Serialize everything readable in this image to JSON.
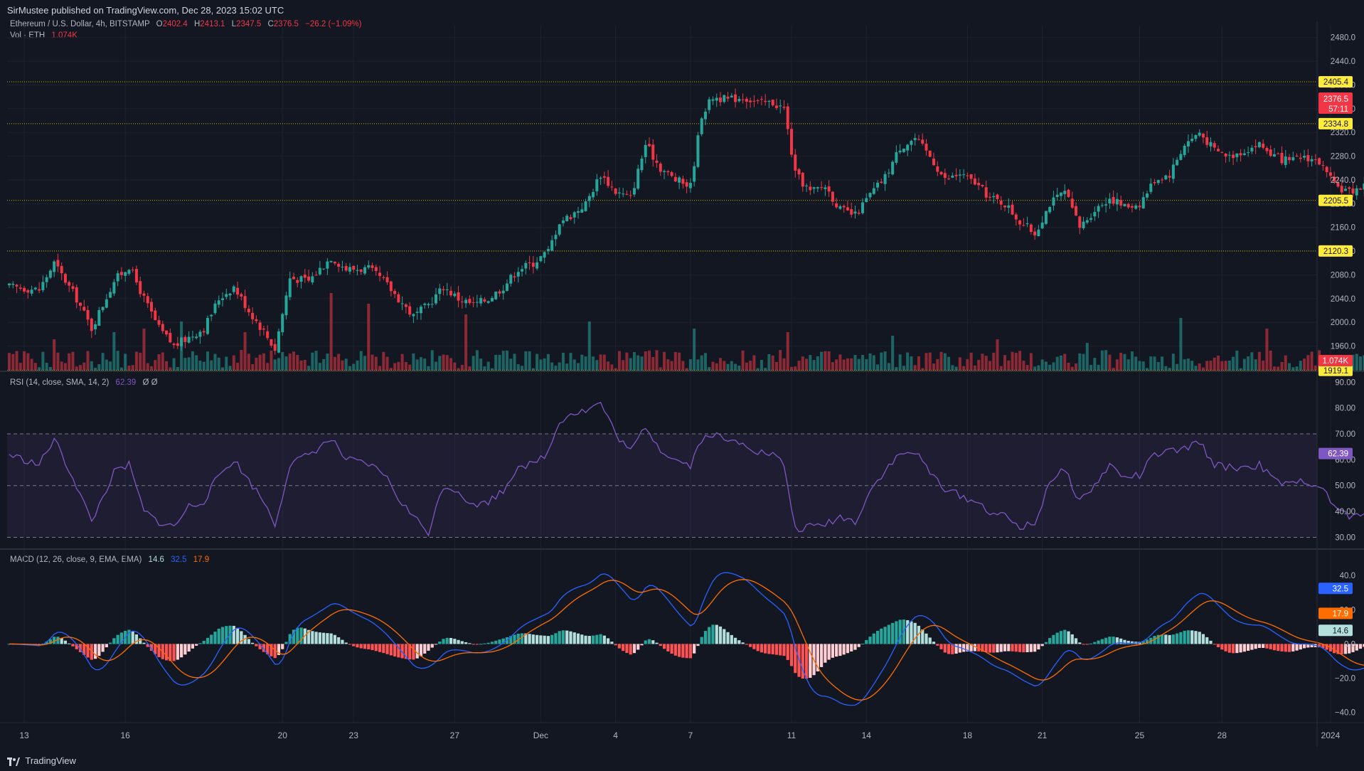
{
  "header": {
    "publish_line": "SirMustee published on TradingView.com, Dec 28, 2023 15:02 UTC"
  },
  "footer": {
    "brand": "TradingView"
  },
  "legend": {
    "symbol": "Ethereum / U.S. Dollar, 4h, BITSTAMP",
    "o_label": "O",
    "o_value": "2402.4",
    "h_label": "H",
    "h_value": "2413.1",
    "l_label": "L",
    "l_value": "2347.5",
    "c_label": "C",
    "c_value": "2376.5",
    "change": "−26.2 (−1.09%)",
    "vol_label": "Vol · ETH",
    "vol_value": "1.074K",
    "rsi_label": "RSI (14, close, SMA, 14, 2)",
    "rsi_value": "62.39",
    "rsi_extra": "Ø  Ø",
    "macd_label": "MACD (12, 26, close, 9, EMA, EMA)",
    "macd_hist": "14.6",
    "macd_line": "32.5",
    "macd_signal": "17.9"
  },
  "colors": {
    "background": "#131722",
    "up": "#26a69a",
    "down": "#f23645",
    "level_line": "#c9b300",
    "level_label_bg": "#ffeb3b",
    "rsi_line": "#7e57c2",
    "macd_line": "#2962ff",
    "signal_line": "#ff6d00",
    "axis_text": "#b2b5be"
  },
  "chart_data": [
    {
      "type": "candlestick",
      "title": "Ethereum / U.S. Dollar, 4h, BITSTAMP",
      "ylim": [
        1920,
        2500
      ],
      "y_ticks": [
        "2480.0",
        "2440.0",
        "2400.0",
        "2360.0",
        "2320.0",
        "2280.0",
        "2240.0",
        "2200.0",
        "2160.0",
        "2120.0",
        "2080.0",
        "2040.0",
        "2000.0",
        "1960.0"
      ],
      "x_ticks": [
        "13",
        "16",
        "20",
        "23",
        "27",
        "Dec",
        "4",
        "7",
        "11",
        "14",
        "18",
        "21",
        "25",
        "28",
        "2024"
      ],
      "close_anchors": [
        [
          0,
          2060
        ],
        [
          8,
          2055
        ],
        [
          12,
          2100
        ],
        [
          18,
          2040
        ],
        [
          22,
          1990
        ],
        [
          28,
          2070
        ],
        [
          32,
          2095
        ],
        [
          36,
          2040
        ],
        [
          40,
          1990
        ],
        [
          44,
          1960
        ],
        [
          48,
          1975
        ],
        [
          52,
          1990
        ],
        [
          56,
          2040
        ],
        [
          60,
          2060
        ],
        [
          64,
          2020
        ],
        [
          68,
          1985
        ],
        [
          71,
          1955
        ],
        [
          75,
          2075
        ],
        [
          80,
          2070
        ],
        [
          86,
          2110
        ],
        [
          90,
          2090
        ],
        [
          96,
          2090
        ],
        [
          100,
          2070
        ],
        [
          104,
          2040
        ],
        [
          108,
          2010
        ],
        [
          112,
          2030
        ],
        [
          116,
          2060
        ],
        [
          120,
          2040
        ],
        [
          124,
          2030
        ],
        [
          128,
          2040
        ],
        [
          132,
          2060
        ],
        [
          136,
          2090
        ],
        [
          140,
          2100
        ],
        [
          144,
          2120
        ],
        [
          147,
          2170
        ],
        [
          150,
          2180
        ],
        [
          154,
          2200
        ],
        [
          158,
          2250
        ],
        [
          162,
          2220
        ],
        [
          166,
          2210
        ],
        [
          170,
          2300
        ],
        [
          174,
          2260
        ],
        [
          178,
          2240
        ],
        [
          182,
          2230
        ],
        [
          185,
          2350
        ],
        [
          188,
          2380
        ],
        [
          192,
          2375
        ],
        [
          196,
          2380
        ],
        [
          200,
          2370
        ],
        [
          204,
          2370
        ],
        [
          207,
          2360
        ],
        [
          210,
          2250
        ],
        [
          214,
          2220
        ],
        [
          218,
          2230
        ],
        [
          222,
          2190
        ],
        [
          226,
          2180
        ],
        [
          230,
          2215
        ],
        [
          234,
          2245
        ],
        [
          238,
          2295
        ],
        [
          242,
          2310
        ],
        [
          246,
          2280
        ],
        [
          250,
          2240
        ],
        [
          254,
          2250
        ],
        [
          258,
          2235
        ],
        [
          262,
          2210
        ],
        [
          266,
          2200
        ],
        [
          270,
          2170
        ],
        [
          274,
          2150
        ],
        [
          278,
          2200
        ],
        [
          282,
          2220
        ],
        [
          286,
          2160
        ],
        [
          290,
          2190
        ],
        [
          294,
          2210
        ],
        [
          298,
          2195
        ],
        [
          302,
          2200
        ],
        [
          306,
          2240
        ],
        [
          310,
          2250
        ],
        [
          314,
          2300
        ],
        [
          318,
          2320
        ],
        [
          322,
          2290
        ],
        [
          326,
          2280
        ],
        [
          330,
          2290
        ],
        [
          334,
          2300
        ],
        [
          338,
          2280
        ],
        [
          342,
          2270
        ],
        [
          346,
          2280
        ],
        [
          350,
          2270
        ],
        [
          354,
          2230
        ],
        [
          358,
          2220
        ],
        [
          362,
          2230
        ],
        [
          366,
          2300
        ],
        [
          370,
          2345
        ],
        [
          374,
          2410
        ],
        [
          377,
          2390
        ],
        [
          378,
          2376.5
        ]
      ],
      "last_close": 2376.5,
      "levels": [
        2405.4,
        2334.8,
        2205.5,
        2120.3,
        1919.1
      ],
      "level_labels": [
        "2405.4",
        "2334.8",
        "2205.5",
        "2120.3",
        "1919.1"
      ],
      "last_price_label": "2376.5",
      "countdown_label": "57:11"
    },
    {
      "type": "bar",
      "title": "Vol · ETH",
      "last_value_label": "1.074K",
      "spike_bars": [
        [
          12,
          45
        ],
        [
          28,
          55
        ],
        [
          36,
          60
        ],
        [
          46,
          70
        ],
        [
          63,
          55
        ],
        [
          86,
          110
        ],
        [
          96,
          95
        ],
        [
          122,
          80
        ],
        [
          155,
          70
        ],
        [
          183,
          60
        ],
        [
          208,
          55
        ],
        [
          236,
          50
        ],
        [
          264,
          45
        ],
        [
          288,
          40
        ],
        [
          313,
          75
        ],
        [
          336,
          60
        ],
        [
          368,
          160
        ],
        [
          372,
          95
        ]
      ]
    },
    {
      "type": "line",
      "title": "RSI (14, close, SMA, 14, 2)",
      "ylim": [
        26,
        92
      ],
      "y_ticks": [
        "90.00",
        "80.00",
        "70.00",
        "60.00",
        "50.00",
        "40.00",
        "30.00"
      ],
      "band": [
        30,
        70
      ],
      "midline": 50,
      "value_label": "62.39",
      "anchors": [
        [
          0,
          62
        ],
        [
          8,
          58
        ],
        [
          12,
          68
        ],
        [
          18,
          50
        ],
        [
          22,
          36
        ],
        [
          28,
          55
        ],
        [
          32,
          58
        ],
        [
          36,
          40
        ],
        [
          40,
          36
        ],
        [
          44,
          34
        ],
        [
          48,
          42
        ],
        [
          52,
          44
        ],
        [
          56,
          54
        ],
        [
          60,
          60
        ],
        [
          64,
          52
        ],
        [
          68,
          44
        ],
        [
          71,
          35
        ],
        [
          75,
          58
        ],
        [
          80,
          62
        ],
        [
          86,
          68
        ],
        [
          90,
          60
        ],
        [
          96,
          58
        ],
        [
          100,
          55
        ],
        [
          104,
          45
        ],
        [
          108,
          38
        ],
        [
          112,
          32
        ],
        [
          116,
          50
        ],
        [
          120,
          48
        ],
        [
          124,
          42
        ],
        [
          128,
          44
        ],
        [
          132,
          48
        ],
        [
          136,
          58
        ],
        [
          140,
          58
        ],
        [
          144,
          63
        ],
        [
          147,
          75
        ],
        [
          150,
          78
        ],
        [
          154,
          79
        ],
        [
          158,
          82
        ],
        [
          162,
          70
        ],
        [
          166,
          63
        ],
        [
          170,
          73
        ],
        [
          174,
          64
        ],
        [
          178,
          60
        ],
        [
          182,
          58
        ],
        [
          185,
          68
        ],
        [
          188,
          70
        ],
        [
          192,
          67
        ],
        [
          196,
          67
        ],
        [
          200,
          63
        ],
        [
          204,
          62
        ],
        [
          207,
          58
        ],
        [
          210,
          33
        ],
        [
          214,
          34
        ],
        [
          218,
          35
        ],
        [
          222,
          38
        ],
        [
          226,
          36
        ],
        [
          230,
          48
        ],
        [
          234,
          56
        ],
        [
          238,
          62
        ],
        [
          242,
          63
        ],
        [
          246,
          55
        ],
        [
          250,
          49
        ],
        [
          254,
          46
        ],
        [
          258,
          44
        ],
        [
          262,
          40
        ],
        [
          266,
          38
        ],
        [
          270,
          34
        ],
        [
          274,
          35
        ],
        [
          278,
          52
        ],
        [
          282,
          56
        ],
        [
          286,
          44
        ],
        [
          290,
          50
        ],
        [
          294,
          58
        ],
        [
          298,
          53
        ],
        [
          302,
          54
        ],
        [
          306,
          62
        ],
        [
          310,
          63
        ],
        [
          314,
          64
        ],
        [
          318,
          67
        ],
        [
          322,
          58
        ],
        [
          326,
          57
        ],
        [
          330,
          57
        ],
        [
          334,
          58
        ],
        [
          338,
          52
        ],
        [
          342,
          50
        ],
        [
          346,
          52
        ],
        [
          350,
          50
        ],
        [
          354,
          42
        ],
        [
          358,
          38
        ],
        [
          362,
          38
        ],
        [
          366,
          62
        ],
        [
          370,
          66
        ],
        [
          374,
          75
        ],
        [
          377,
          67
        ],
        [
          378,
          62.39
        ]
      ]
    },
    {
      "type": "line+bar",
      "title": "MACD (12, 26, close, 9, EMA, EMA)",
      "ylim": [
        -46,
        48
      ],
      "y_ticks": [
        "40.0",
        "20.0",
        "0.0",
        "−20.0",
        "−40.0"
      ],
      "series": [
        {
          "name": "MACD",
          "value_label": "32.5"
        },
        {
          "name": "Signal",
          "value_label": "17.9"
        },
        {
          "name": "Histogram",
          "value_label": "14.6"
        }
      ]
    }
  ]
}
